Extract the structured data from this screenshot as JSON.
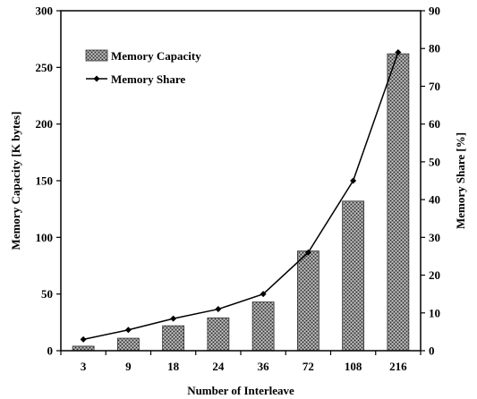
{
  "chart_data": {
    "type": "bar",
    "categories": [
      "3",
      "9",
      "18",
      "24",
      "36",
      "72",
      "108",
      "216"
    ],
    "series": [
      {
        "name": "Memory Capacity",
        "type": "bar",
        "axis": "left",
        "values": [
          4,
          11,
          22,
          29,
          43,
          88,
          132,
          262
        ]
      },
      {
        "name": "Memory Share",
        "type": "line",
        "axis": "right",
        "values": [
          3,
          5.5,
          8.5,
          11,
          15,
          26,
          45,
          79
        ]
      }
    ],
    "xlabel": "Number of Interleave",
    "ylabel": "Memory Capacity [K bytes]",
    "y2label": "Memory Share [%]",
    "ylim": [
      0,
      300
    ],
    "y2lim": [
      0,
      90
    ],
    "yticks": [
      "0",
      "50",
      "100",
      "150",
      "200",
      "250",
      "300"
    ],
    "y2ticks": [
      "0",
      "10",
      "20",
      "30",
      "40",
      "50",
      "60",
      "70",
      "80",
      "90"
    ],
    "grid": false,
    "legend_position": "top-left",
    "colors": {
      "bar_fill": "#7a7a7a",
      "line": "#000000"
    }
  }
}
